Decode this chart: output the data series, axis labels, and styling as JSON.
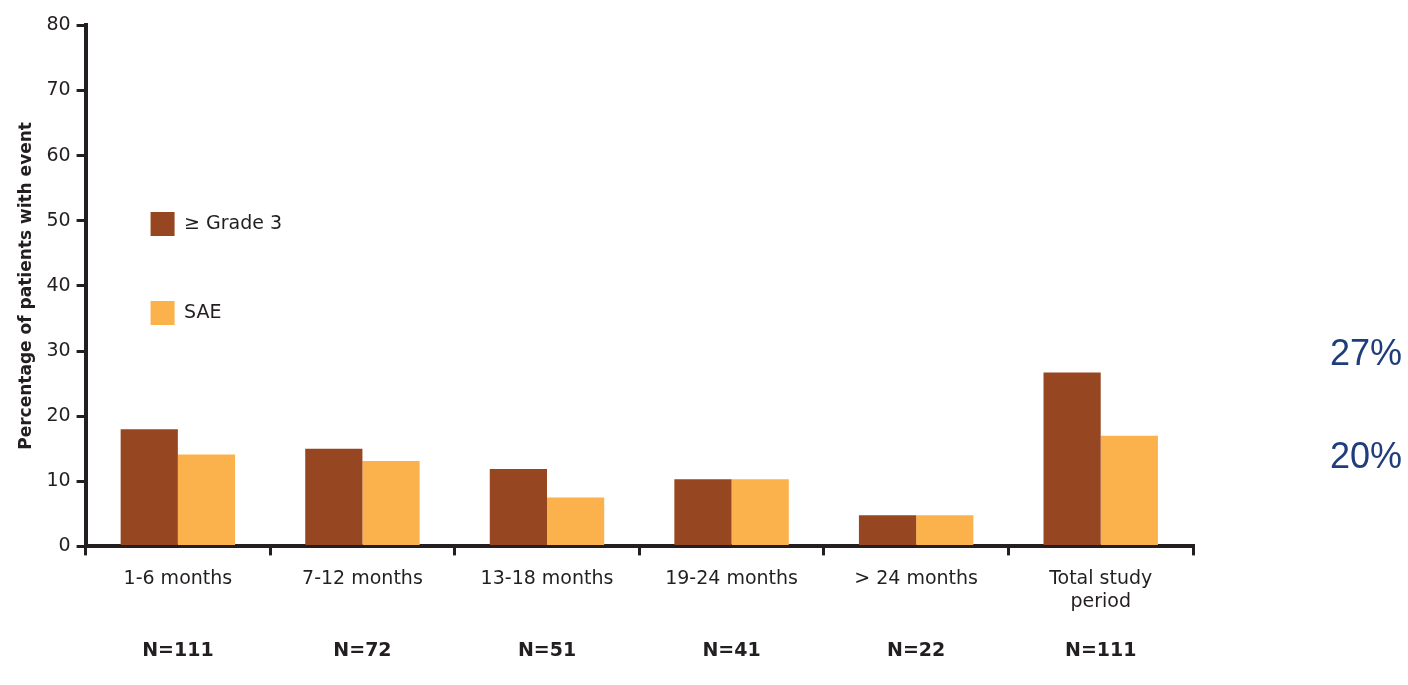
{
  "chart_data": {
    "type": "bar",
    "ylabel": "Percentage of patients with event",
    "categories": [
      "1-6 months",
      "7-12 months",
      "13-18 months",
      "19-24 months",
      "> 24 months",
      "Total study period"
    ],
    "series": [
      {
        "name": "≥ Grade 3",
        "color": "#964721",
        "values": [
          18,
          15,
          11.9,
          10.3,
          4.8,
          26.7
        ]
      },
      {
        "name": "SAE",
        "color": "#fbb24c",
        "values": [
          14.1,
          13.1,
          7.5,
          10.3,
          4.8,
          17
        ]
      }
    ],
    "ylim": [
      0,
      80
    ],
    "yticks": [
      0,
      10,
      20,
      30,
      40,
      50,
      60,
      70,
      80
    ],
    "grid": false,
    "legend": "top",
    "annotations": [
      "N=111",
      "N=72",
      "N=51",
      "N=41",
      "N=22",
      "N=111",
      "27%",
      "20%"
    ]
  }
}
